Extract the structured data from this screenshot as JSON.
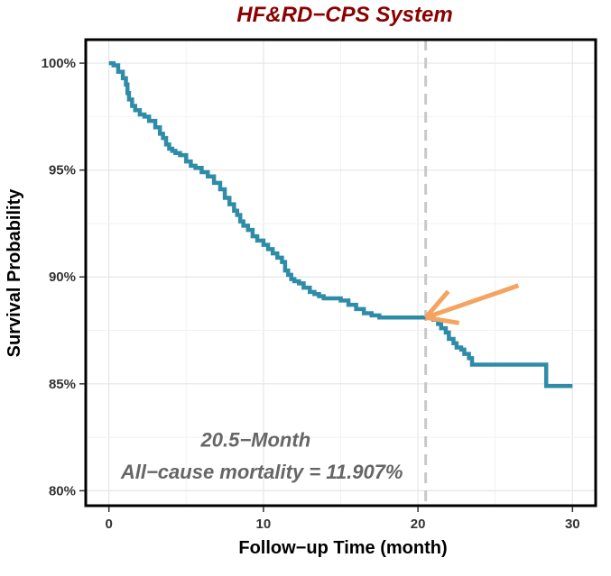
{
  "chart_data": {
    "type": "line",
    "title": "HF&RD−CPS System",
    "xlabel": "Follow−up Time (month)",
    "ylabel": "Survival Probability",
    "xlim": [
      -1.5,
      31.5
    ],
    "ylim": [
      79.3,
      101.1
    ],
    "x_ticks": [
      "0",
      "10",
      "20",
      "30"
    ],
    "x_tick_values": [
      0,
      10,
      20,
      30
    ],
    "y_ticks": [
      "80%",
      "85%",
      "90%",
      "95%",
      "100%"
    ],
    "y_tick_values": [
      80,
      85,
      90,
      95,
      100
    ],
    "grid": true,
    "series": [
      {
        "x": [
          0,
          0.3,
          0.6,
          0.9,
          1.1,
          1.2,
          1.3,
          1.5,
          1.7,
          2.0,
          2.3,
          2.6,
          3.0,
          3.3,
          3.5,
          3.7,
          3.9,
          4.1,
          4.3,
          4.6,
          5.0,
          5.3,
          5.6,
          6.0,
          6.4,
          6.8,
          7.2,
          7.5,
          7.8,
          8.1,
          8.3,
          8.5,
          8.7,
          9.0,
          9.3,
          9.6,
          10.0,
          10.3,
          10.6,
          10.9,
          11.2,
          11.4,
          11.6,
          11.8,
          12.0,
          12.3,
          12.6,
          13.0,
          13.3,
          13.6,
          13.9,
          14.2,
          14.5,
          15.0,
          15.5,
          16.0,
          16.5,
          17.0,
          17.5,
          18.0,
          18.5,
          19.0,
          19.5,
          20.0,
          20.5,
          21.0,
          21.3,
          21.5,
          21.8,
          22.0,
          22.3,
          22.5,
          22.8,
          23.0,
          23.3,
          23.5,
          24.0,
          25.0,
          26.0,
          27.0,
          28.0,
          28.3,
          28.5,
          29.0,
          30.0
        ],
        "y": [
          100,
          99.9,
          99.6,
          99.3,
          99.0,
          98.6,
          98.3,
          98.0,
          97.8,
          97.6,
          97.5,
          97.3,
          97.0,
          96.7,
          96.5,
          96.2,
          96.0,
          95.9,
          95.8,
          95.7,
          95.4,
          95.2,
          95.1,
          94.9,
          94.7,
          94.4,
          94.1,
          93.7,
          93.4,
          93.1,
          92.9,
          92.6,
          92.4,
          92.2,
          91.9,
          91.7,
          91.5,
          91.3,
          91.1,
          90.9,
          90.7,
          90.3,
          90.1,
          89.9,
          89.8,
          89.7,
          89.5,
          89.3,
          89.2,
          89.1,
          89.0,
          89.0,
          89.0,
          88.9,
          88.7,
          88.5,
          88.3,
          88.2,
          88.1,
          88.1,
          88.1,
          88.1,
          88.1,
          88.1,
          88.1,
          88.0,
          87.8,
          87.6,
          87.4,
          87.1,
          86.9,
          86.7,
          86.6,
          86.4,
          86.2,
          85.9,
          85.9,
          85.9,
          85.9,
          85.9,
          85.9,
          84.9,
          84.9,
          84.9,
          84.9
        ],
        "color": "#2F8CA8"
      }
    ],
    "reference_line_x": 20.5,
    "annotation_line1": "20.5−Month",
    "annotation_line2": "All−cause mortality = 11.907%",
    "arrow_color": "#F4A460",
    "title_color": "#8B0000"
  }
}
